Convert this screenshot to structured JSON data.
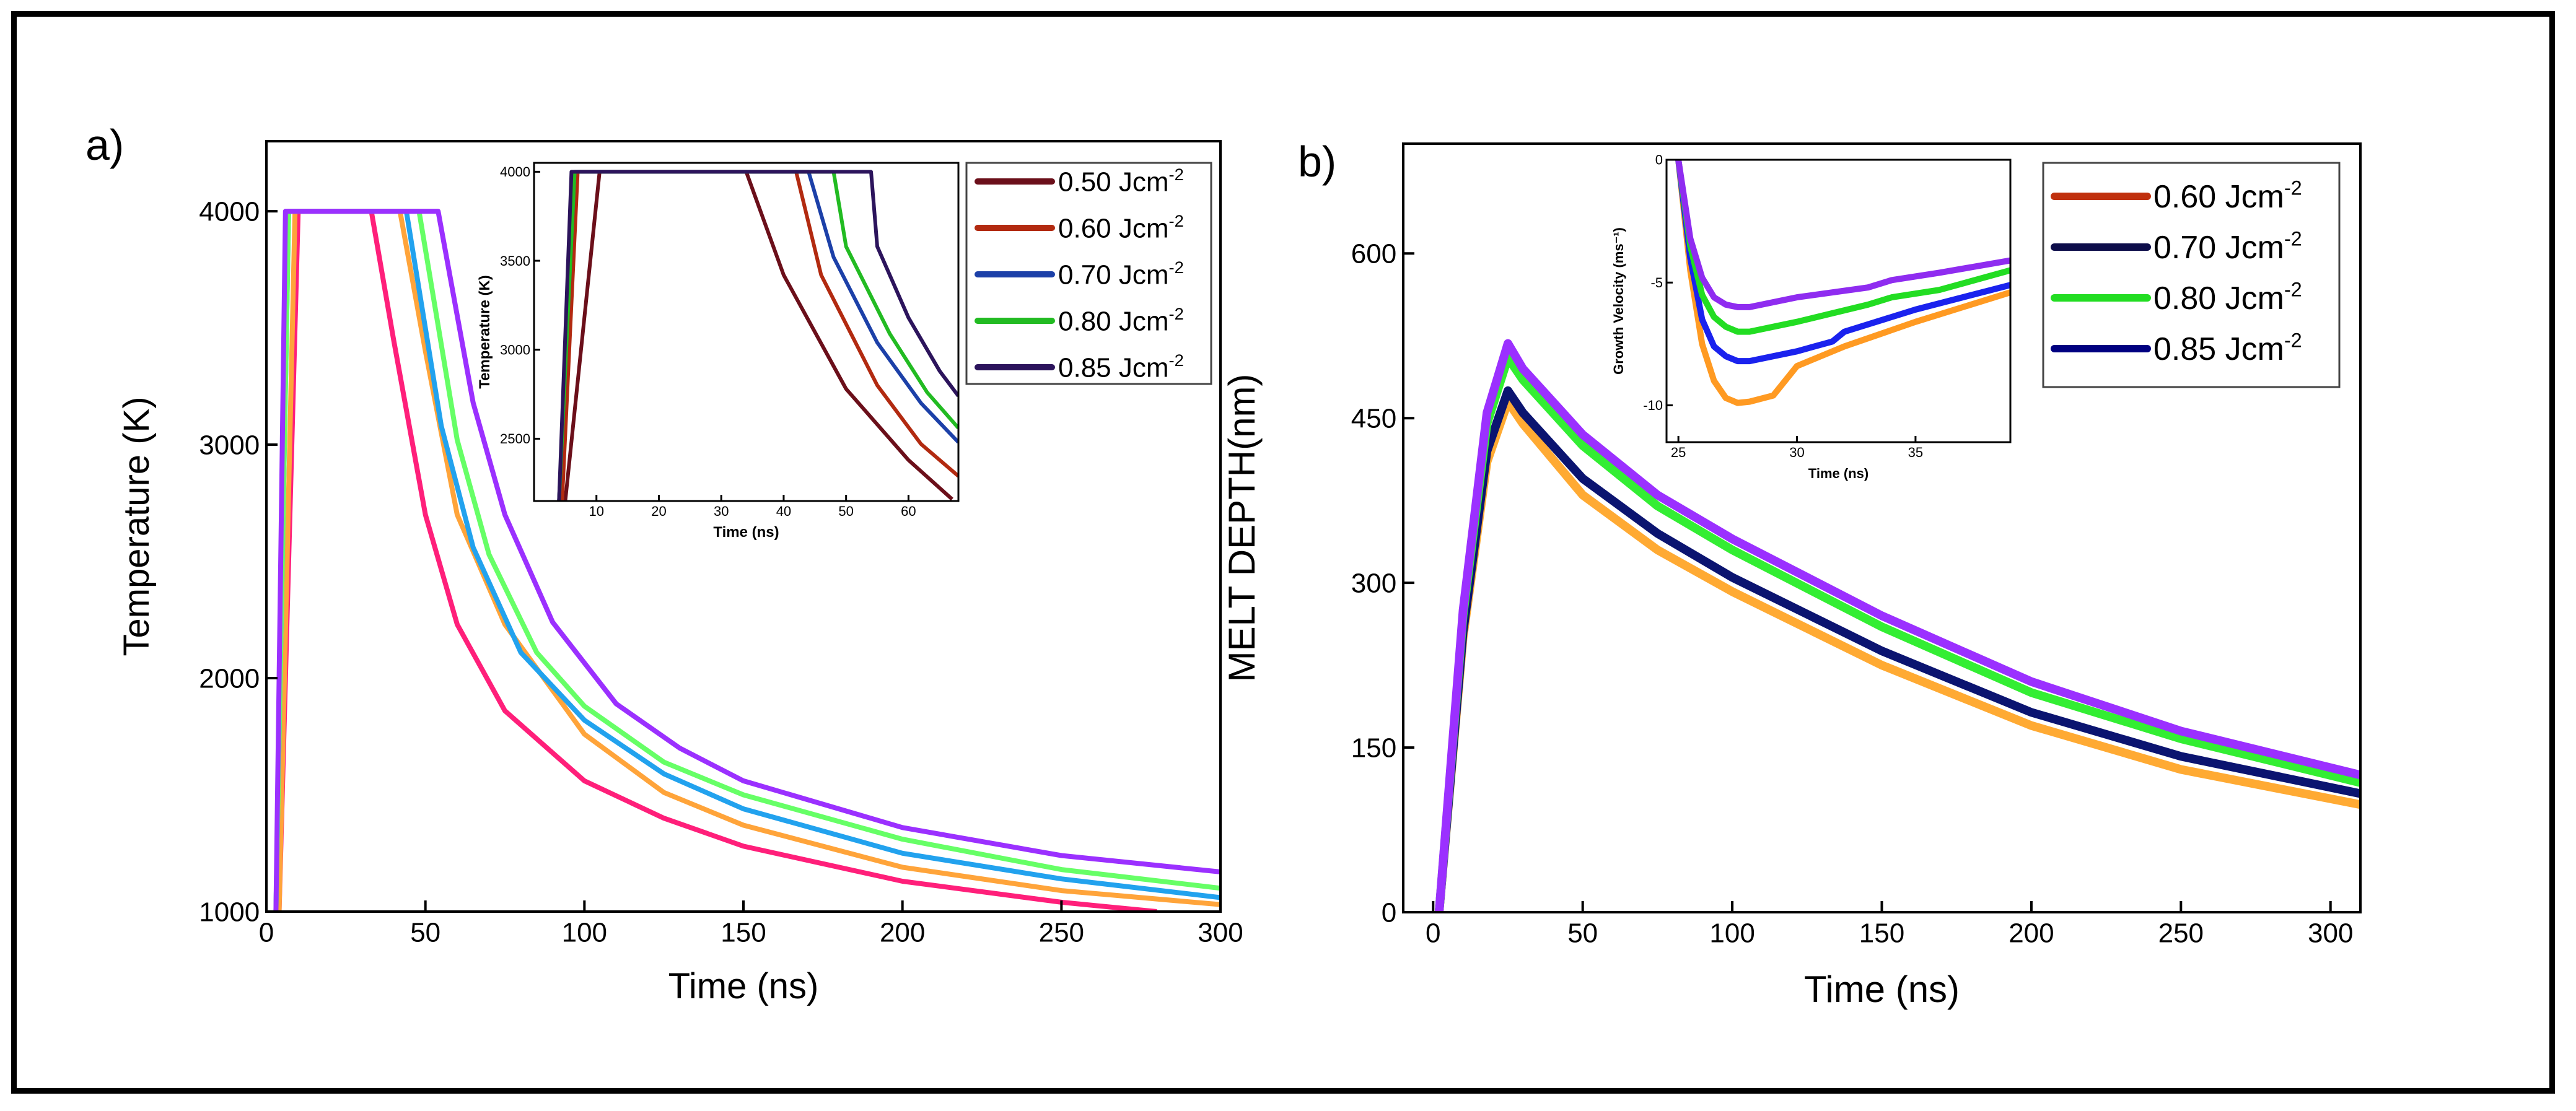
{
  "panel_labels": {
    "a": "a)",
    "b": "b)"
  },
  "legend_unit_sup": "-2",
  "chart_data": [
    {
      "id": "a",
      "type": "line",
      "xlabel": "Time (ns)",
      "ylabel": "Temperature (K)",
      "xlim": [
        0,
        300
      ],
      "ylim": [
        1000,
        4300
      ],
      "xticks": [
        0,
        50,
        100,
        150,
        200,
        250,
        300
      ],
      "yticks": [
        1000,
        2000,
        3000,
        4000
      ],
      "series": [
        {
          "name": "0.50 Jcm",
          "color": "#ff1f7a",
          "x": [
            4,
            10,
            33,
            40,
            50,
            60,
            75,
            100,
            125,
            150,
            200,
            250,
            280
          ],
          "y": [
            1000,
            4000,
            4000,
            3450,
            2700,
            2230,
            1860,
            1560,
            1400,
            1280,
            1130,
            1040,
            1000
          ]
        },
        {
          "name": "0.60 Jcm",
          "color": "#ffa43a",
          "x": [
            4,
            9,
            42,
            50,
            60,
            75,
            100,
            125,
            150,
            200,
            250,
            300
          ],
          "y": [
            1000,
            4000,
            4000,
            3400,
            2700,
            2230,
            1760,
            1510,
            1370,
            1190,
            1090,
            1030
          ]
        },
        {
          "name": "0.70 Jcm",
          "color": "#22a2ee",
          "x": [
            3,
            7,
            44,
            55,
            65,
            80,
            100,
            125,
            150,
            200,
            250,
            300
          ],
          "y": [
            1000,
            4000,
            4000,
            3080,
            2560,
            2110,
            1820,
            1590,
            1440,
            1250,
            1140,
            1060
          ]
        },
        {
          "name": "0.80 Jcm",
          "color": "#66ff66",
          "x": [
            3,
            7,
            48,
            60,
            70,
            85,
            100,
            125,
            150,
            200,
            250,
            300
          ],
          "y": [
            1000,
            4000,
            4000,
            3020,
            2530,
            2110,
            1880,
            1640,
            1500,
            1310,
            1180,
            1100
          ]
        },
        {
          "name": "0.85 Jcm",
          "color": "#9b30ff",
          "x": [
            3,
            6,
            54,
            65,
            75,
            90,
            110,
            130,
            150,
            200,
            250,
            300
          ],
          "y": [
            1000,
            4000,
            4000,
            3180,
            2700,
            2240,
            1890,
            1700,
            1560,
            1360,
            1240,
            1170
          ]
        }
      ]
    },
    {
      "id": "a-inset",
      "type": "line",
      "xlabel": "Time (ns)",
      "ylabel": "Temperature (K)",
      "xlim": [
        0,
        68
      ],
      "ylim": [
        2150,
        4050
      ],
      "xticks": [
        10,
        20,
        30,
        40,
        50,
        60
      ],
      "yticks": [
        2500,
        3000,
        3500,
        4000
      ],
      "legend_entries": [
        "0.50 Jcm",
        "0.60 Jcm",
        "0.70 Jcm",
        "0.80 Jcm",
        "0.85 Jcm"
      ],
      "series": [
        {
          "name": "0.50 Jcm",
          "color": "#6b0f1a",
          "x": [
            5,
            10.5,
            34,
            40,
            50,
            60,
            67
          ],
          "y": [
            2150,
            4000,
            4000,
            3420,
            2780,
            2380,
            2160
          ]
        },
        {
          "name": "0.60 Jcm",
          "color": "#b22a10",
          "x": [
            4.5,
            7,
            42,
            46,
            55,
            62,
            68
          ],
          "y": [
            2150,
            4000,
            4000,
            3420,
            2800,
            2470,
            2290
          ]
        },
        {
          "name": "0.70 Jcm",
          "color": "#1c40a8",
          "x": [
            4,
            6.5,
            44,
            48,
            55,
            62,
            68
          ],
          "y": [
            2150,
            4000,
            4000,
            3520,
            3040,
            2700,
            2480
          ]
        },
        {
          "name": "0.80 Jcm",
          "color": "#22bb22",
          "x": [
            4,
            6.5,
            48,
            50,
            57,
            63,
            68
          ],
          "y": [
            2150,
            4000,
            4000,
            3580,
            3090,
            2760,
            2560
          ]
        },
        {
          "name": "0.85 Jcm",
          "color": "#2c145c",
          "x": [
            4,
            6,
            54,
            55,
            60,
            65,
            68
          ],
          "y": [
            2150,
            4000,
            4000,
            3580,
            3180,
            2880,
            2740
          ]
        }
      ]
    },
    {
      "id": "b",
      "type": "line",
      "xlabel": "Time (ns)",
      "ylabel": "MELT DEPTH(nm)",
      "xlim": [
        -10,
        310
      ],
      "ylim": [
        0,
        700
      ],
      "xticks": [
        0,
        50,
        100,
        150,
        200,
        250,
        300
      ],
      "yticks": [
        0,
        150,
        300,
        450,
        600
      ],
      "legend_entries": [
        "0.60 Jcm",
        "0.70 Jcm",
        "0.80 Jcm",
        "0.85 Jcm"
      ],
      "legend_colors": [
        "#c0300e",
        "#0d0d4a",
        "#22dd22",
        "#000080"
      ],
      "series": [
        {
          "name": "0.60 Jcm",
          "color": "#ffaa33",
          "x": [
            2,
            10,
            18,
            25,
            30,
            50,
            75,
            100,
            150,
            200,
            250,
            310
          ],
          "y": [
            0,
            250,
            410,
            465,
            445,
            380,
            330,
            292,
            225,
            170,
            130,
            98
          ]
        },
        {
          "name": "0.70 Jcm",
          "color": "#0b1470",
          "x": [
            2,
            10,
            18,
            25,
            30,
            50,
            75,
            100,
            150,
            200,
            250,
            310
          ],
          "y": [
            0,
            255,
            420,
            475,
            455,
            395,
            345,
            305,
            238,
            182,
            142,
            108
          ]
        },
        {
          "name": "0.80 Jcm",
          "color": "#33ee33",
          "x": [
            2,
            10,
            18,
            25,
            30,
            50,
            75,
            100,
            150,
            200,
            250,
            310
          ],
          "y": [
            0,
            270,
            445,
            505,
            485,
            425,
            370,
            330,
            260,
            200,
            158,
            118
          ]
        },
        {
          "name": "0.85 Jcm",
          "color": "#9b30ff",
          "x": [
            2,
            10,
            18,
            25,
            30,
            50,
            75,
            100,
            150,
            200,
            250,
            310
          ],
          "y": [
            0,
            275,
            455,
            518,
            495,
            435,
            380,
            340,
            270,
            210,
            165,
            125
          ]
        }
      ]
    },
    {
      "id": "b-inset",
      "type": "line",
      "xlabel": "Time (ns)",
      "ylabel": "Growth Velocity (ms⁻¹)",
      "xlim": [
        24.5,
        39
      ],
      "ylim": [
        -11.5,
        0
      ],
      "xticks": [
        25,
        30,
        35
      ],
      "yticks": [
        0,
        -5,
        -10
      ],
      "series": [
        {
          "name": "0.60 Jcm",
          "color": "#ff9a22",
          "x": [
            25,
            25.5,
            26,
            26.5,
            27,
            27.5,
            28,
            29,
            30,
            32,
            35,
            39
          ],
          "y": [
            0,
            -4.5,
            -7.5,
            -9.0,
            -9.7,
            -9.9,
            -9.85,
            -9.6,
            -8.4,
            -7.6,
            -6.6,
            -5.4
          ]
        },
        {
          "name": "0.70 Jcm",
          "color": "#1a22ee",
          "x": [
            25,
            25.5,
            26,
            26.5,
            27,
            27.5,
            28,
            30,
            31.5,
            32,
            35,
            39
          ],
          "y": [
            0,
            -4,
            -6.5,
            -7.6,
            -8.0,
            -8.2,
            -8.2,
            -7.8,
            -7.4,
            -7.0,
            -6.1,
            -5.1
          ]
        },
        {
          "name": "0.80 Jcm",
          "color": "#22dd22",
          "x": [
            25,
            25.5,
            26,
            26.5,
            27,
            27.5,
            28,
            30,
            33,
            34,
            36,
            39
          ],
          "y": [
            0,
            -3.5,
            -5.5,
            -6.4,
            -6.8,
            -7.0,
            -7.0,
            -6.6,
            -5.9,
            -5.6,
            -5.3,
            -4.5
          ]
        },
        {
          "name": "0.85 Jcm",
          "color": "#8f2cf0",
          "x": [
            25,
            25.5,
            26,
            26.5,
            27,
            27.5,
            28,
            30,
            33,
            34,
            36,
            39
          ],
          "y": [
            0,
            -3.2,
            -4.8,
            -5.6,
            -5.9,
            -6.0,
            -6.0,
            -5.6,
            -5.2,
            -4.9,
            -4.6,
            -4.1
          ]
        }
      ]
    }
  ]
}
